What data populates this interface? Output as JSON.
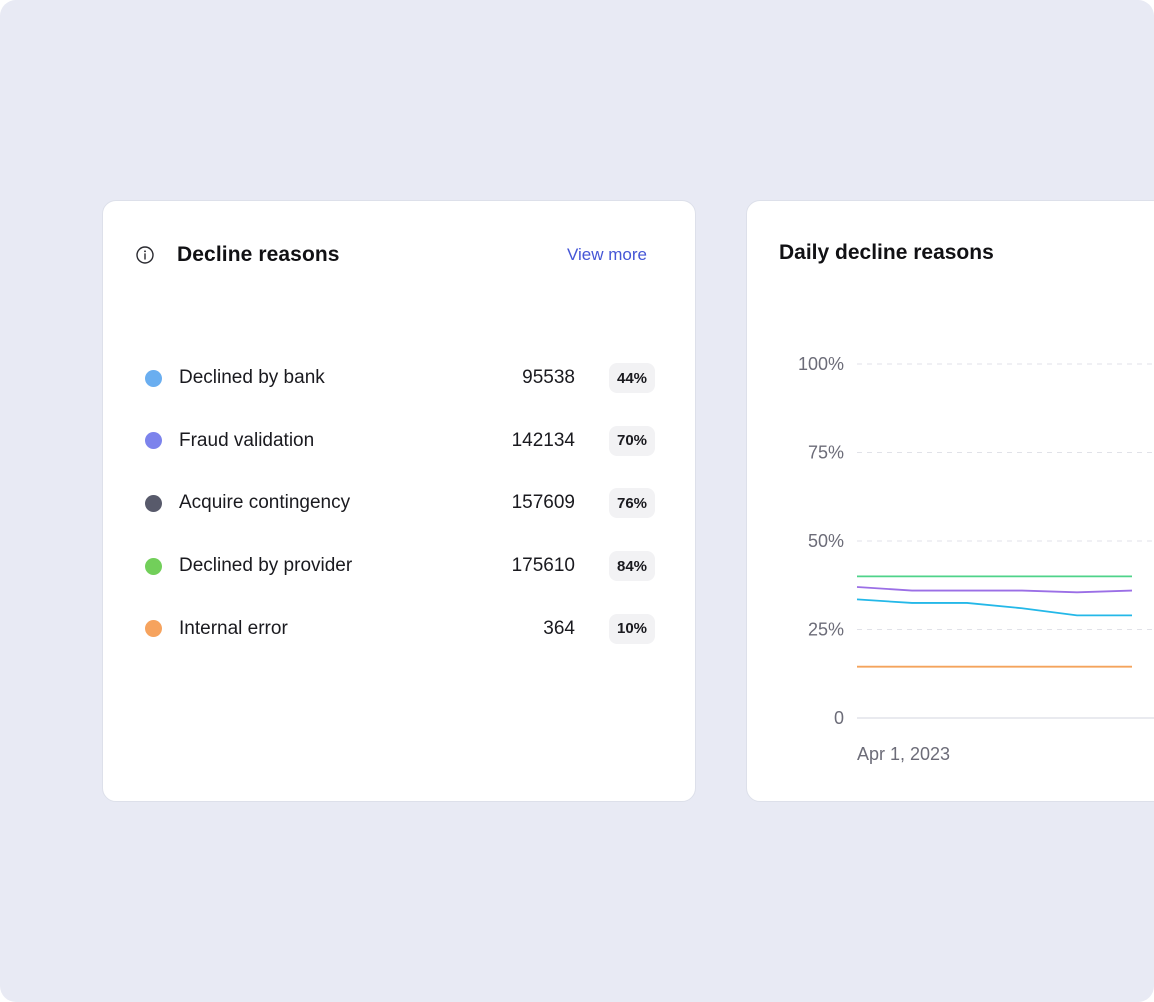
{
  "decline_reasons": {
    "title": "Decline reasons",
    "view_more": "View more",
    "items": [
      {
        "label": "Declined by bank",
        "count": "95538",
        "percent": "44%",
        "color": "#6aaef0"
      },
      {
        "label": "Fraud validation",
        "count": "142134",
        "percent": "70%",
        "color": "#7c83ec"
      },
      {
        "label": "Acquire contingency",
        "count": "157609",
        "percent": "76%",
        "color": "#585a6b"
      },
      {
        "label": "Declined by provider",
        "count": "175610",
        "percent": "84%",
        "color": "#72cf5a"
      },
      {
        "label": "Internal error",
        "count": "364",
        "percent": "10%",
        "color": "#f6a35e"
      }
    ]
  },
  "daily_chart": {
    "title": "Daily decline reasons",
    "x_start_label": "Apr 1, 2023"
  },
  "chart_data": {
    "type": "line",
    "title": "Daily decline reasons",
    "xlabel": "",
    "ylabel": "",
    "ylim": [
      0,
      100
    ],
    "y_ticks": [
      "0",
      "25%",
      "50%",
      "75%",
      "100%"
    ],
    "y_tick_values": [
      0,
      25,
      50,
      75,
      100
    ],
    "x_tick_labels": [
      "Apr 1, 2023"
    ],
    "grid": true,
    "x": [
      0,
      1,
      2,
      3,
      4,
      5
    ],
    "series": [
      {
        "color": "#4fd38a",
        "values": [
          40,
          40,
          40,
          40,
          40,
          40
        ]
      },
      {
        "color": "#9b6fe6",
        "values": [
          37,
          36,
          36,
          36,
          35.5,
          36
        ]
      },
      {
        "color": "#24b8e8",
        "values": [
          33.5,
          32.5,
          32.5,
          31,
          29,
          29
        ]
      },
      {
        "color": "#f4a35c",
        "values": [
          14.5,
          14.5,
          14.5,
          14.5,
          14.5,
          14.5
        ]
      }
    ]
  }
}
